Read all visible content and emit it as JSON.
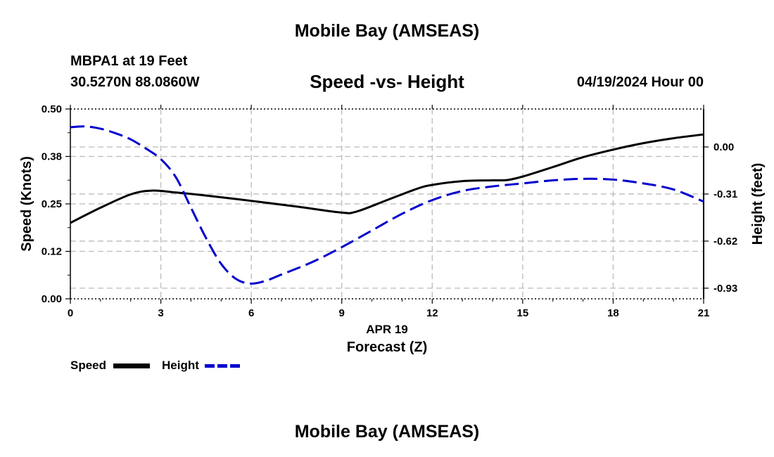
{
  "header": {
    "main_title": "Mobile Bay (AMSEAS)",
    "station": "MBPA1 at 19 Feet",
    "coordinates": "30.5270N  88.0860W",
    "chart_title": "Speed -vs- Height",
    "run_time": "04/19/2024 Hour 00"
  },
  "legend": {
    "speed_label": "Speed",
    "height_label": "Height"
  },
  "footer": {
    "title": "Mobile Bay (AMSEAS)"
  },
  "colors": {
    "speed": "#000000",
    "height": "#0000cc",
    "grid": "#bbbbbb"
  },
  "chart_data": {
    "type": "line",
    "title": "Speed -vs- Height",
    "date_label": "APR 19",
    "xlabel": "Forecast (Z)",
    "ylabel_left": "Speed (Knots)",
    "ylabel_right": "Height (feet)",
    "xlim": [
      0,
      21
    ],
    "x_ticks": [
      0,
      3,
      6,
      9,
      12,
      15,
      18,
      21
    ],
    "ylim_left": [
      0,
      0.5
    ],
    "y_ticks_left": [
      0.0,
      0.125,
      0.25,
      0.375,
      0.5
    ],
    "y_tick_labels_left": [
      "0.00",
      "0.12",
      "0.25",
      "0.38",
      "0.50"
    ],
    "ylim_right": [
      -1.0,
      0.25
    ],
    "y_ticks_right": [
      0.0,
      -0.31,
      -0.62,
      -0.93
    ],
    "y_tick_labels_right": [
      "0.00",
      "-0.31",
      "-0.62",
      "-0.93"
    ],
    "grid": true,
    "series": [
      {
        "name": "Speed",
        "axis": "left",
        "style": "solid",
        "x": [
          0,
          1,
          2,
          2.7,
          3.5,
          4.5,
          6,
          7.5,
          9,
          9.5,
          10.5,
          11.5,
          12,
          13,
          14,
          14.5,
          15,
          16,
          17,
          18,
          19,
          20,
          21
        ],
        "values": [
          0.2,
          0.24,
          0.275,
          0.285,
          0.28,
          0.272,
          0.258,
          0.243,
          0.227,
          0.23,
          0.26,
          0.29,
          0.3,
          0.31,
          0.312,
          0.313,
          0.322,
          0.347,
          0.373,
          0.393,
          0.41,
          0.423,
          0.433
        ]
      },
      {
        "name": "Height",
        "axis": "right",
        "style": "dashed",
        "x": [
          0,
          0.5,
          1,
          1.5,
          2,
          2.5,
          3,
          3.5,
          4,
          4.5,
          5,
          5.5,
          6,
          6.5,
          7,
          8,
          9,
          10,
          11,
          12,
          13,
          14,
          15,
          16,
          17,
          18,
          19,
          20,
          21
        ],
        "values": [
          0.13,
          0.135,
          0.12,
          0.09,
          0.05,
          -0.01,
          -0.08,
          -0.2,
          -0.4,
          -0.6,
          -0.77,
          -0.87,
          -0.9,
          -0.88,
          -0.84,
          -0.76,
          -0.66,
          -0.55,
          -0.44,
          -0.35,
          -0.29,
          -0.26,
          -0.24,
          -0.22,
          -0.21,
          -0.215,
          -0.24,
          -0.28,
          -0.36
        ]
      }
    ]
  }
}
